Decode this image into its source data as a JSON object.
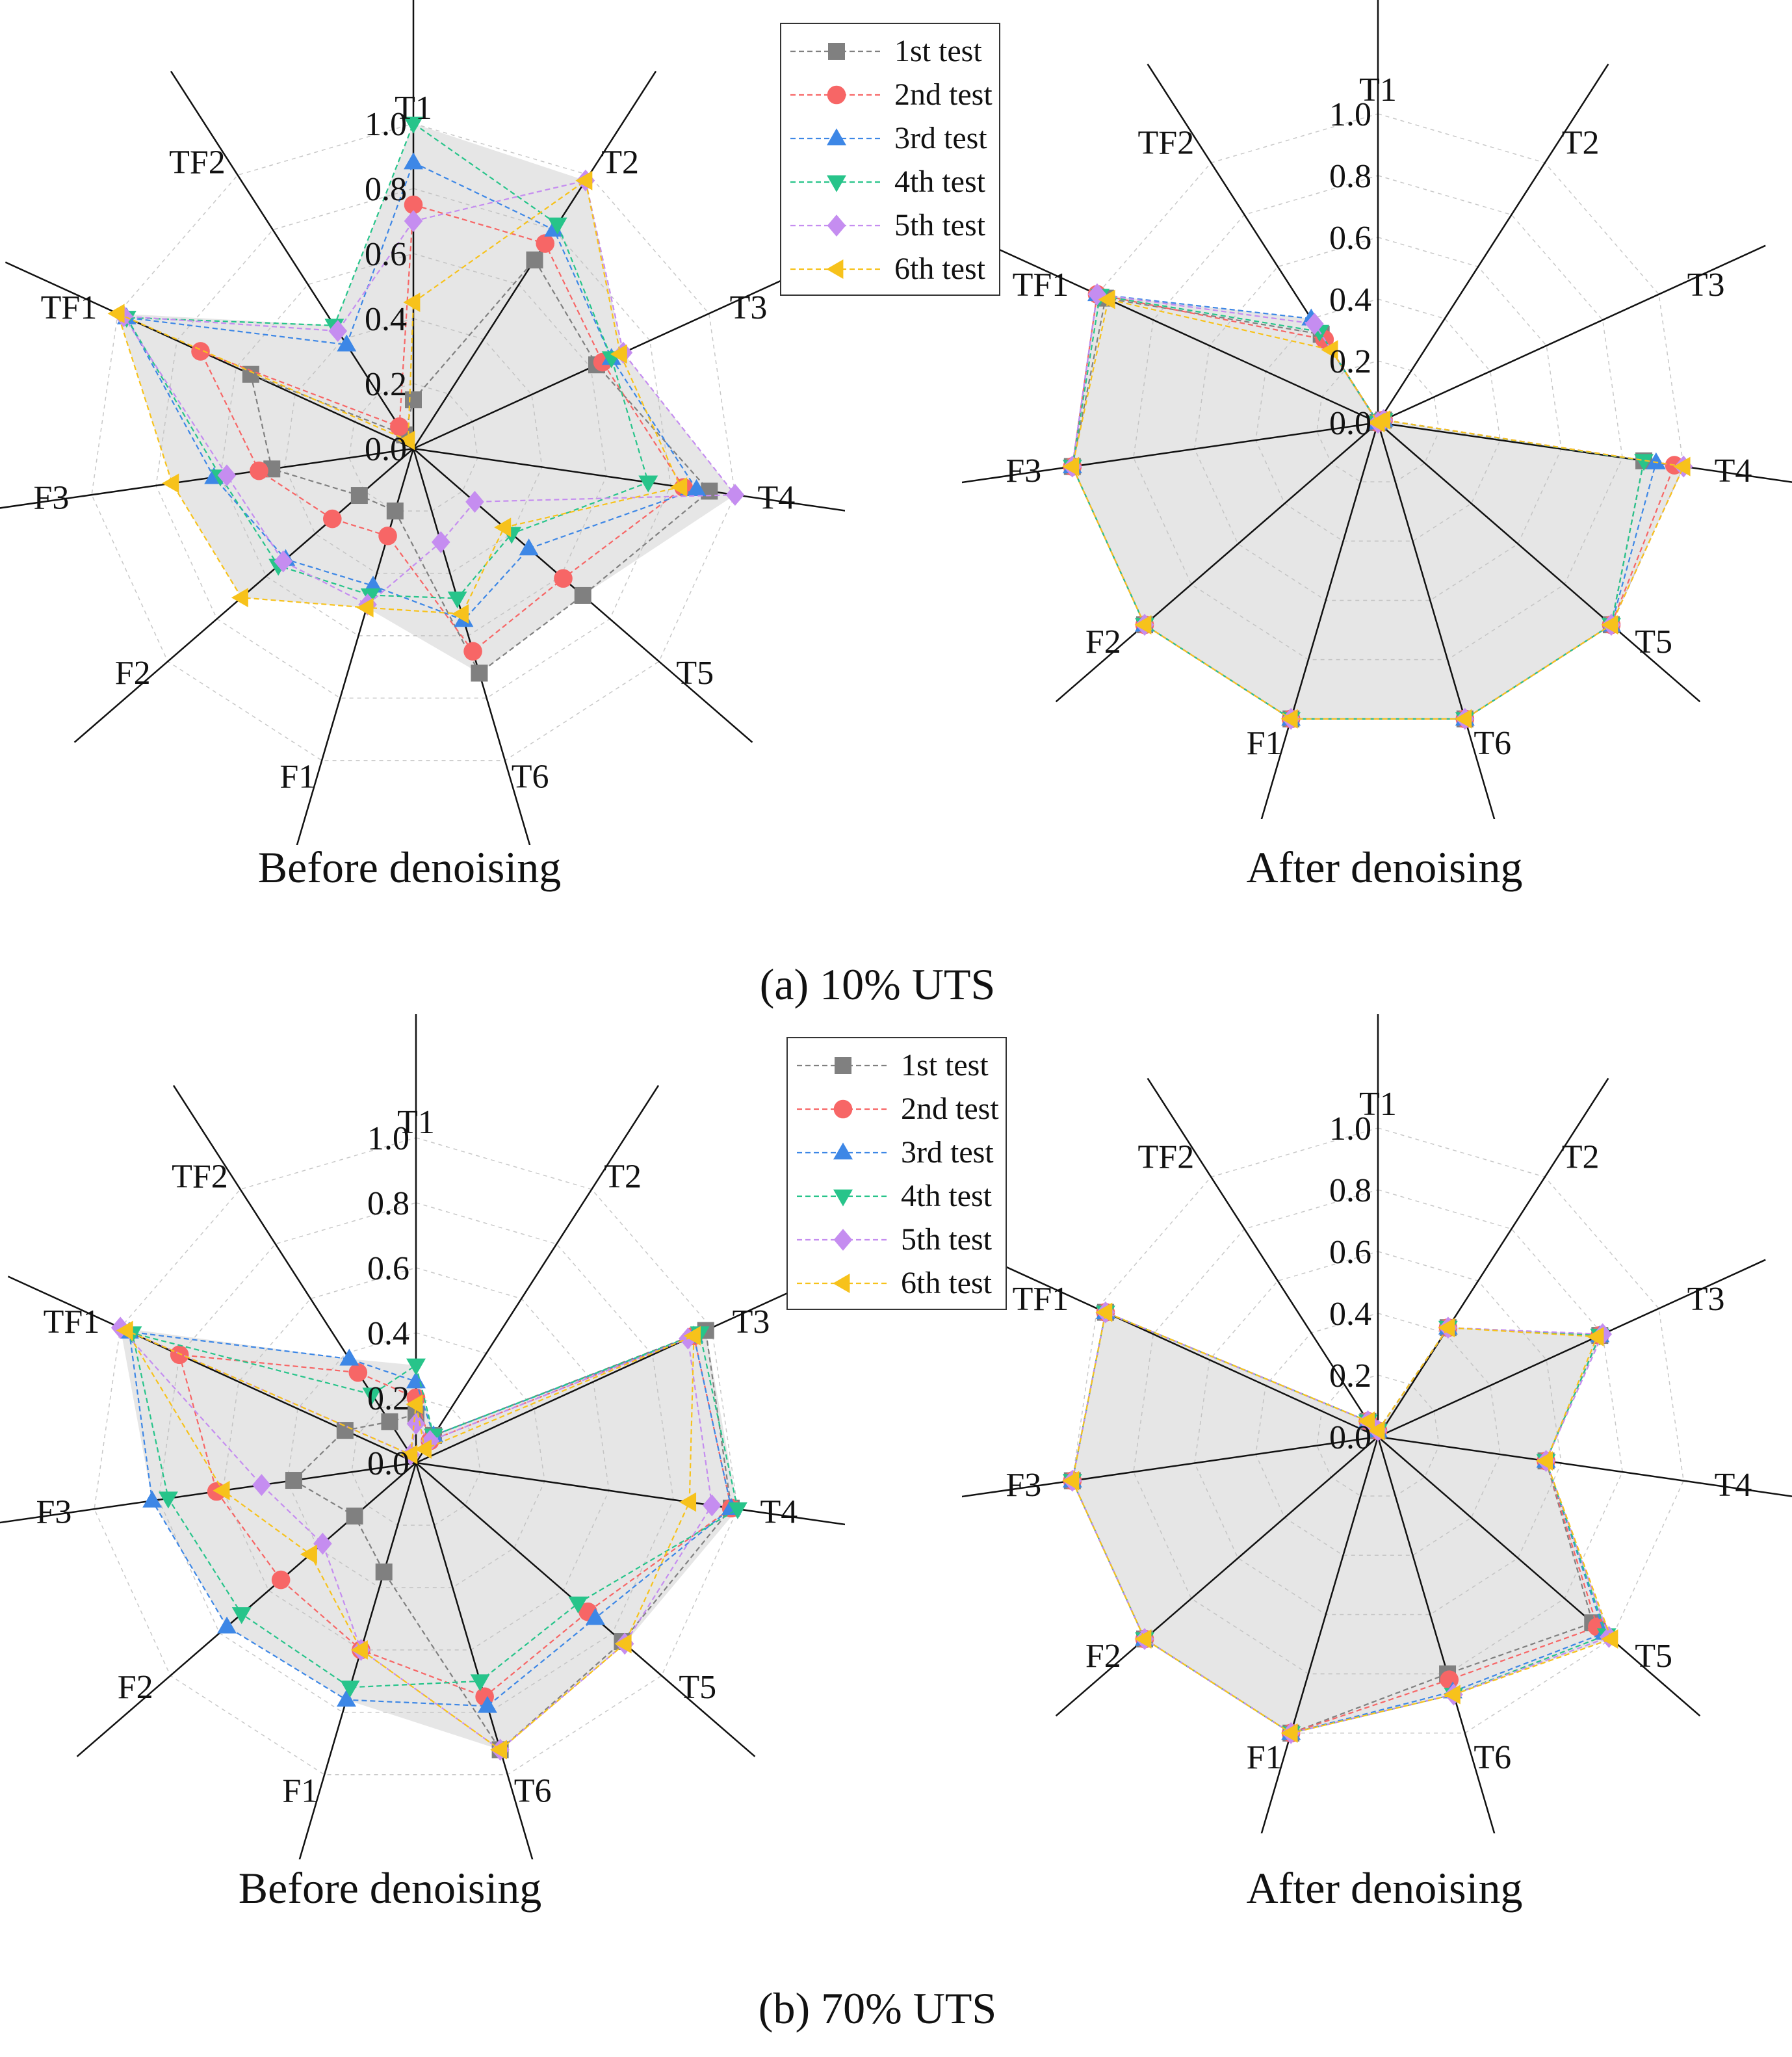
{
  "axes": [
    "T1",
    "T2",
    "T3",
    "T4",
    "T5",
    "T6",
    "F1",
    "F2",
    "F3",
    "TF1",
    "TF2"
  ],
  "radial_ticks": [
    "0.0",
    "0.2",
    "0.4",
    "0.6",
    "0.8",
    "1.0"
  ],
  "series_style": [
    {
      "color": "#808080",
      "marker": "square"
    },
    {
      "color": "#f76666",
      "marker": "circle"
    },
    {
      "color": "#3d87e6",
      "marker": "triangle-up"
    },
    {
      "color": "#27c48a",
      "marker": "triangle-down"
    },
    {
      "color": "#c58df0",
      "marker": "diamond"
    },
    {
      "color": "#f7c21b",
      "marker": "triangle-left"
    }
  ],
  "legend_labels": [
    "1st test",
    "2nd test",
    "3rd test",
    "4th test",
    "5th test",
    "6th test"
  ],
  "captions": {
    "a": "(a) 10% UTS",
    "b": "(b) 70% UTS"
  },
  "panel_titles": {
    "before": "Before denoising",
    "after": "After denoising"
  },
  "chart_data": [
    {
      "type": "radar",
      "panel": "(a) 10% UTS - Before denoising",
      "range": [
        0,
        1
      ],
      "axes": [
        "T1",
        "T2",
        "T3",
        "T4",
        "T5",
        "T6",
        "F1",
        "F2",
        "F3",
        "TF1",
        "TF2"
      ],
      "series": [
        {
          "name": "1st test",
          "values": [
            0.15,
            0.69,
            0.62,
            0.92,
            0.69,
            0.72,
            0.2,
            0.22,
            0.44,
            0.55,
            0.05
          ]
        },
        {
          "name": "2nd test",
          "values": [
            0.75,
            0.75,
            0.64,
            0.84,
            0.61,
            0.65,
            0.28,
            0.33,
            0.48,
            0.72,
            0.08
          ]
        },
        {
          "name": "3rd test",
          "values": [
            0.88,
            0.8,
            0.67,
            0.88,
            0.47,
            0.55,
            0.44,
            0.52,
            0.62,
            0.97,
            0.38
          ]
        },
        {
          "name": "4th test",
          "values": [
            1.0,
            0.82,
            0.67,
            0.73,
            0.4,
            0.48,
            0.47,
            0.55,
            0.6,
            0.97,
            0.45
          ]
        },
        {
          "name": "5th test",
          "values": [
            0.7,
            0.98,
            0.71,
            1.0,
            0.25,
            0.3,
            0.5,
            0.53,
            0.58,
            0.98,
            0.43
          ]
        },
        {
          "name": "6th test",
          "values": [
            0.45,
            0.98,
            0.7,
            0.83,
            0.37,
            0.53,
            0.51,
            0.7,
            0.75,
            1.0,
            0.03
          ]
        }
      ]
    },
    {
      "type": "radar",
      "panel": "(a) 10% UTS - After denoising",
      "range": [
        0,
        1
      ],
      "axes": [
        "T1",
        "T2",
        "T3",
        "T4",
        "T5",
        "T6",
        "F1",
        "F2",
        "F3",
        "TF1",
        "TF2"
      ],
      "series": [
        {
          "name": "1st test",
          "values": [
            0.0,
            0.0,
            0.02,
            0.87,
            1.0,
            1.0,
            1.0,
            1.0,
            1.0,
            0.97,
            0.34
          ]
        },
        {
          "name": "2nd test",
          "values": [
            0.0,
            0.0,
            0.02,
            0.97,
            1.0,
            1.0,
            1.0,
            1.0,
            1.0,
            1.0,
            0.32
          ]
        },
        {
          "name": "3rd test",
          "values": [
            0.0,
            0.0,
            0.02,
            0.91,
            1.0,
            1.0,
            1.0,
            1.0,
            1.0,
            1.0,
            0.4
          ]
        },
        {
          "name": "4th test",
          "values": [
            0.0,
            0.0,
            0.02,
            0.87,
            1.0,
            1.0,
            1.0,
            1.0,
            1.0,
            0.99,
            0.35
          ]
        },
        {
          "name": "5th test",
          "values": [
            0.0,
            0.0,
            0.02,
            1.0,
            1.0,
            1.0,
            1.0,
            1.0,
            1.0,
            1.0,
            0.38
          ]
        },
        {
          "name": "6th test",
          "values": [
            0.0,
            0.0,
            0.02,
            1.0,
            1.0,
            1.0,
            1.0,
            1.0,
            1.0,
            0.96,
            0.28
          ]
        }
      ]
    },
    {
      "type": "radar",
      "panel": "(b) 70% UTS - Before denoising",
      "range": [
        0,
        1
      ],
      "axes": [
        "T1",
        "T2",
        "T3",
        "T4",
        "T5",
        "T6",
        "F1",
        "F2",
        "F3",
        "TF1",
        "TF2"
      ],
      "series": [
        {
          "name": "1st test",
          "values": [
            0.15,
            0.1,
            0.98,
            0.98,
            0.84,
            0.92,
            0.35,
            0.25,
            0.38,
            0.24,
            0.15
          ]
        },
        {
          "name": "2nd test",
          "values": [
            0.2,
            0.08,
            0.94,
            0.98,
            0.7,
            0.75,
            0.6,
            0.55,
            0.62,
            0.8,
            0.33
          ]
        },
        {
          "name": "3rd test",
          "values": [
            0.25,
            0.1,
            0.94,
            0.98,
            0.73,
            0.78,
            0.76,
            0.77,
            0.82,
            0.97,
            0.38
          ]
        },
        {
          "name": "4th test",
          "values": [
            0.3,
            0.1,
            0.96,
            1.0,
            0.66,
            0.7,
            0.72,
            0.71,
            0.77,
            0.96,
            0.25
          ]
        },
        {
          "name": "5th test",
          "values": [
            0.12,
            0.08,
            0.92,
            0.92,
            0.85,
            0.92,
            0.6,
            0.38,
            0.48,
            1.0,
            0.03
          ]
        },
        {
          "name": "6th test",
          "values": [
            0.18,
            0.05,
            0.94,
            0.85,
            0.85,
            0.92,
            0.6,
            0.43,
            0.6,
            0.98,
            0.03
          ]
        }
      ]
    },
    {
      "type": "radar",
      "panel": "(b) 70% UTS - After denoising",
      "range": [
        0,
        1
      ],
      "axes": [
        "T1",
        "T2",
        "T3",
        "T4",
        "T5",
        "T6",
        "F1",
        "F2",
        "F3",
        "TF1",
        "TF2"
      ],
      "series": [
        {
          "name": "1st test",
          "values": [
            0.02,
            0.42,
            0.79,
            0.55,
            0.92,
            0.8,
            1.0,
            1.0,
            1.0,
            0.97,
            0.06
          ]
        },
        {
          "name": "2nd test",
          "values": [
            0.02,
            0.42,
            0.79,
            0.55,
            0.94,
            0.82,
            1.0,
            1.0,
            1.0,
            0.97,
            0.06
          ]
        },
        {
          "name": "3rd test",
          "values": [
            0.02,
            0.42,
            0.79,
            0.55,
            0.97,
            0.86,
            1.0,
            1.0,
            1.0,
            0.97,
            0.06
          ]
        },
        {
          "name": "4th test",
          "values": [
            0.02,
            0.42,
            0.79,
            0.55,
            0.98,
            0.87,
            1.0,
            1.0,
            1.0,
            0.97,
            0.06
          ]
        },
        {
          "name": "5th test",
          "values": [
            0.02,
            0.42,
            0.8,
            0.55,
            0.99,
            0.87,
            1.0,
            1.0,
            1.0,
            0.97,
            0.06
          ]
        },
        {
          "name": "6th test",
          "values": [
            0.02,
            0.42,
            0.78,
            0.55,
            1.0,
            0.87,
            1.0,
            1.0,
            1.0,
            0.97,
            0.06
          ]
        }
      ]
    }
  ]
}
